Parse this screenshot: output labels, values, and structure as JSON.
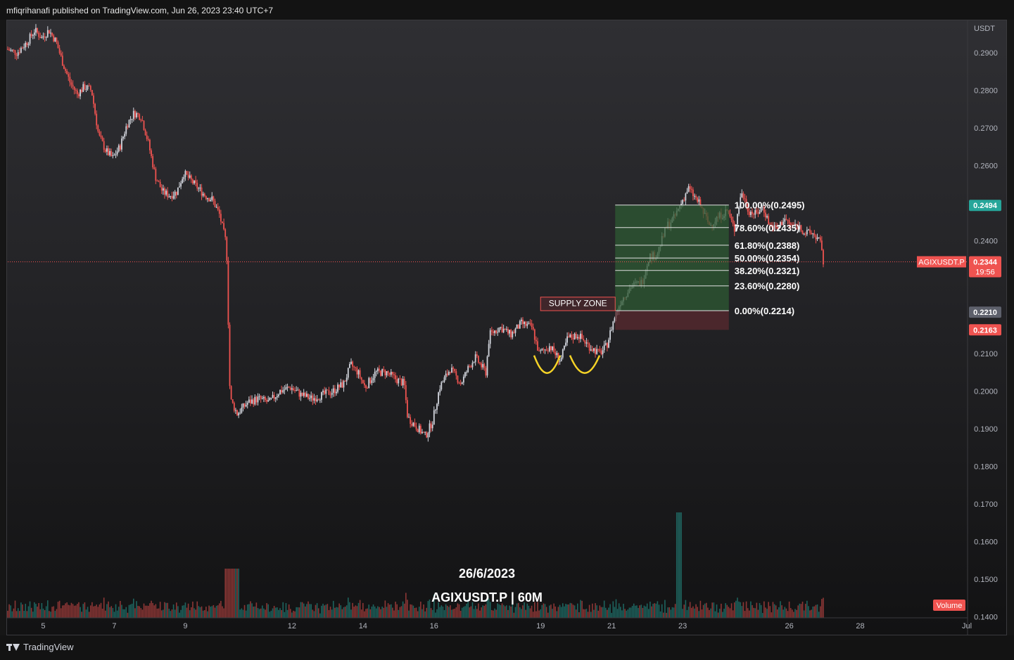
{
  "header": {
    "publisher_line": "mfiqrihanafi published on TradingView.com, Jun 26, 2023 23:40 UTC+7"
  },
  "footer": {
    "brand": "TradingView",
    "brand_icon": "tradingview-logo-icon"
  },
  "colors": {
    "up": "#d1d4dc",
    "down": "#ef5350",
    "volume_up": "#26a69a",
    "volume_down": "#ef5350",
    "fib_zone": "#2e5a33",
    "stop_zone": "#5a2a2f",
    "curve": "#f5d327",
    "price_line": "#ef5350"
  },
  "chart_data": {
    "type": "candlestick",
    "symbol": "AGIXUSDT.P",
    "timeframe_text": "AGIXUSDT.P | 60M",
    "date_text": "26/6/2023",
    "y_axis": {
      "unit": "USDT",
      "ticks": [
        0.29,
        0.28,
        0.27,
        0.26,
        0.24,
        0.21,
        0.2,
        0.19,
        0.18,
        0.17,
        0.16,
        0.15,
        0.14
      ],
      "tick_labels": [
        "0.2900",
        "0.2800",
        "0.2700",
        "0.2600",
        "0.2400",
        "0.2100",
        "0.2000",
        "0.1900",
        "0.1800",
        "0.1700",
        "0.1600",
        "0.1500",
        "0.1400"
      ],
      "range": [
        0.1397,
        0.2988
      ]
    },
    "x_axis": {
      "labels": [
        "5",
        "7",
        "9",
        "12",
        "14",
        "16",
        "19",
        "21",
        "23",
        "26",
        "28",
        "Jul"
      ],
      "day_values": [
        5,
        7,
        9,
        12,
        14,
        16,
        19,
        21,
        23,
        26,
        28,
        31
      ],
      "range_days": [
        4.0,
        31.0
      ]
    },
    "price_path": [
      [
        4.0,
        0.291
      ],
      [
        4.3,
        0.29
      ],
      [
        4.6,
        0.293
      ],
      [
        4.8,
        0.296
      ],
      [
        5.0,
        0.294
      ],
      [
        5.2,
        0.296
      ],
      [
        5.4,
        0.293
      ],
      [
        5.6,
        0.287
      ],
      [
        5.8,
        0.282
      ],
      [
        6.0,
        0.279
      ],
      [
        6.2,
        0.281
      ],
      [
        6.4,
        0.28
      ],
      [
        6.6,
        0.268
      ],
      [
        6.8,
        0.264
      ],
      [
        7.0,
        0.262
      ],
      [
        7.2,
        0.265
      ],
      [
        7.4,
        0.271
      ],
      [
        7.6,
        0.274
      ],
      [
        7.8,
        0.273
      ],
      [
        8.0,
        0.266
      ],
      [
        8.2,
        0.257
      ],
      [
        8.4,
        0.253
      ],
      [
        8.6,
        0.252
      ],
      [
        8.8,
        0.253
      ],
      [
        9.0,
        0.258
      ],
      [
        9.2,
        0.256
      ],
      [
        9.4,
        0.254
      ],
      [
        9.6,
        0.252
      ],
      [
        9.8,
        0.251
      ],
      [
        10.0,
        0.247
      ],
      [
        10.2,
        0.239
      ],
      [
        10.3,
        0.198
      ],
      [
        10.5,
        0.194
      ],
      [
        10.8,
        0.197
      ],
      [
        11.1,
        0.198
      ],
      [
        11.4,
        0.197
      ],
      [
        11.7,
        0.2
      ],
      [
        12.0,
        0.201
      ],
      [
        12.3,
        0.199
      ],
      [
        12.6,
        0.198
      ],
      [
        12.9,
        0.199
      ],
      [
        13.2,
        0.2
      ],
      [
        13.5,
        0.202
      ],
      [
        13.7,
        0.207
      ],
      [
        13.9,
        0.205
      ],
      [
        14.1,
        0.201
      ],
      [
        14.4,
        0.205
      ],
      [
        14.7,
        0.205
      ],
      [
        15.0,
        0.203
      ],
      [
        15.2,
        0.202
      ],
      [
        15.3,
        0.193
      ],
      [
        15.5,
        0.191
      ],
      [
        15.8,
        0.188
      ],
      [
        16.0,
        0.192
      ],
      [
        16.2,
        0.201
      ],
      [
        16.5,
        0.206
      ],
      [
        16.8,
        0.202
      ],
      [
        17.0,
        0.206
      ],
      [
        17.2,
        0.209
      ],
      [
        17.5,
        0.205
      ],
      [
        17.6,
        0.215
      ],
      [
        17.9,
        0.217
      ],
      [
        18.2,
        0.215
      ],
      [
        18.5,
        0.218
      ],
      [
        18.8,
        0.217
      ],
      [
        19.0,
        0.21
      ],
      [
        19.3,
        0.212
      ],
      [
        19.6,
        0.208
      ],
      [
        19.8,
        0.214
      ],
      [
        20.1,
        0.215
      ],
      [
        20.4,
        0.212
      ],
      [
        20.7,
        0.21
      ],
      [
        20.9,
        0.212
      ],
      [
        21.1,
        0.219
      ],
      [
        21.3,
        0.224
      ],
      [
        21.6,
        0.228
      ],
      [
        21.9,
        0.229
      ],
      [
        22.1,
        0.236
      ],
      [
        22.3,
        0.236
      ],
      [
        22.6,
        0.244
      ],
      [
        22.8,
        0.246
      ],
      [
        23.0,
        0.25
      ],
      [
        23.2,
        0.254
      ],
      [
        23.5,
        0.25
      ],
      [
        23.8,
        0.244
      ],
      [
        24.0,
        0.246
      ],
      [
        24.3,
        0.248
      ],
      [
        24.5,
        0.243
      ],
      [
        24.7,
        0.253
      ],
      [
        24.9,
        0.248
      ],
      [
        25.1,
        0.247
      ],
      [
        25.3,
        0.249
      ],
      [
        25.5,
        0.244
      ],
      [
        25.7,
        0.243
      ],
      [
        25.9,
        0.246
      ],
      [
        26.1,
        0.244
      ],
      [
        26.3,
        0.244
      ],
      [
        26.5,
        0.242
      ],
      [
        26.7,
        0.242
      ],
      [
        26.9,
        0.24
      ],
      [
        27.0,
        0.2344
      ]
    ],
    "current_price": {
      "label": "AGIXUSDT.P",
      "value": "0.2344",
      "countdown": "19:56"
    },
    "axis_badges": [
      {
        "value": "0.2494",
        "price": 0.2494,
        "color": "#26a69a"
      },
      {
        "value": "0.2210",
        "price": 0.221,
        "color": "#5d606b"
      },
      {
        "value": "0.2163",
        "price": 0.2163,
        "color": "#ef5350"
      }
    ],
    "fib_levels": [
      {
        "label": "100.00%(0.2495)",
        "price": 0.2495
      },
      {
        "label": "78.60%(0.2435)",
        "price": 0.2435
      },
      {
        "label": "61.80%(0.2388)",
        "price": 0.2388
      },
      {
        "label": "50.00%(0.2354)",
        "price": 0.2354
      },
      {
        "label": "38.20%(0.2321)",
        "price": 0.2321
      },
      {
        "label": "23.60%(0.2280)",
        "price": 0.228
      },
      {
        "label": "0.00%(0.2214)",
        "price": 0.2214
      }
    ],
    "fib_range_days": [
      21.1,
      24.3
    ],
    "target_zone": {
      "from_day": 21.1,
      "to_day": 24.3,
      "low": 0.2214,
      "high": 0.2495
    },
    "stop_zone": {
      "from_day": 21.1,
      "to_day": 24.3,
      "low": 0.2163,
      "high": 0.2214
    },
    "supply_zone": {
      "label": "SUPPLY ZONE",
      "from_day": 19.0,
      "to_day": 21.1,
      "low": 0.2214,
      "high": 0.225
    },
    "double_bottom_days": [
      19.7,
      21.4
    ],
    "volume_label": "Volume"
  }
}
